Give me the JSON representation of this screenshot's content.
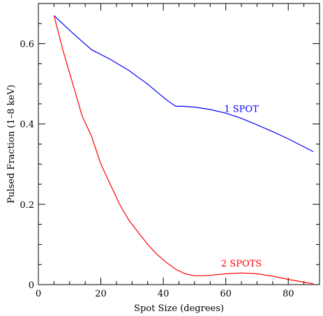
{
  "chart_data": {
    "type": "line",
    "title": "",
    "xlabel": "Spot Size (degrees)",
    "ylabel": "Pulsed Fraction (1–8 keV)",
    "xlim": [
      0,
      90
    ],
    "ylim": [
      0,
      0.7
    ],
    "x_ticks": [
      0,
      20,
      40,
      60,
      80
    ],
    "y_ticks": [
      0,
      0.2,
      0.4,
      0.6
    ],
    "x_tick_labels": [
      "0",
      "20",
      "40",
      "60",
      "80"
    ],
    "y_tick_labels": [
      "0",
      "0.2",
      "0.4",
      "0.6"
    ],
    "grid": false,
    "series": [
      {
        "name": "1 SPOT",
        "color": "#0000ff",
        "label_at": [
          65,
          0.43
        ],
        "x": [
          5,
          11,
          17,
          23,
          29,
          35,
          41,
          44,
          46,
          50,
          55,
          60,
          65,
          70,
          75,
          80,
          85,
          88
        ],
        "y": [
          0.67,
          0.626,
          0.585,
          0.561,
          0.533,
          0.499,
          0.46,
          0.444,
          0.444,
          0.442,
          0.436,
          0.427,
          0.414,
          0.398,
          0.381,
          0.363,
          0.343,
          0.331
        ]
      },
      {
        "name": "2 SPOTS",
        "color": "#ff0000",
        "label_at": [
          65,
          0.045
        ],
        "x": [
          5,
          8,
          11,
          14,
          17,
          20,
          23,
          26,
          29,
          32,
          35,
          38,
          41,
          44,
          47,
          50,
          53,
          56,
          60,
          65,
          70,
          75,
          80,
          85,
          88
        ],
        "y": [
          0.67,
          0.58,
          0.5,
          0.42,
          0.37,
          0.3,
          0.25,
          0.2,
          0.16,
          0.13,
          0.1,
          0.075,
          0.055,
          0.038,
          0.027,
          0.022,
          0.022,
          0.024,
          0.027,
          0.029,
          0.027,
          0.021,
          0.013,
          0.006,
          0.002
        ]
      }
    ]
  }
}
